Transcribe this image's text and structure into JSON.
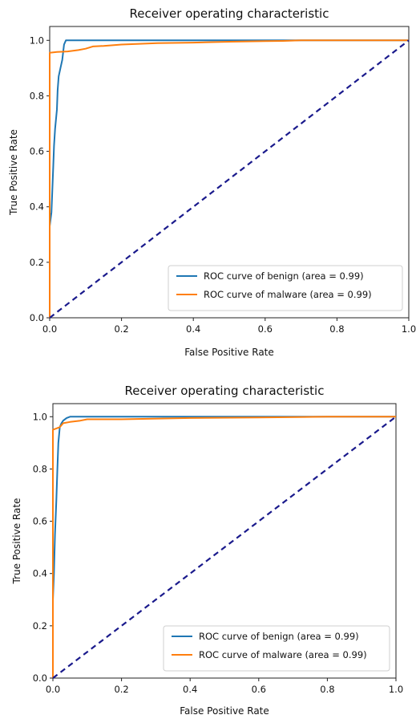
{
  "chart_data": [
    {
      "type": "line",
      "title": "Receiver operating characteristic",
      "xlabel": "False Positive Rate",
      "ylabel": "True Positive Rate",
      "xlim": [
        0,
        1
      ],
      "ylim": [
        0,
        1.05
      ],
      "xticks": [
        "0.0",
        "0.2",
        "0.4",
        "0.6",
        "0.8",
        "1.0"
      ],
      "yticks": [
        "0.0",
        "0.2",
        "0.4",
        "0.6",
        "0.8",
        "1.0"
      ],
      "legend_position": "lower-right",
      "grid": false,
      "series": [
        {
          "name": "ROC curve of benign (area = 0.99)",
          "color": "#1f77b4",
          "x": [
            0,
            0,
            0.005,
            0.01,
            0.012,
            0.015,
            0.02,
            0.022,
            0.025,
            0.03,
            0.035,
            0.04,
            0.045,
            0.06,
            0.2,
            0.4,
            0.6,
            0.7,
            1.0
          ],
          "y": [
            0,
            0.33,
            0.38,
            0.55,
            0.62,
            0.68,
            0.75,
            0.82,
            0.87,
            0.9,
            0.93,
            0.985,
            1.0,
            1.0,
            1.0,
            1.0,
            1.0,
            1.0,
            1.0
          ]
        },
        {
          "name": "ROC curve of malware (area = 0.99)",
          "color": "#ff7f0e",
          "x": [
            0,
            0,
            0.02,
            0.05,
            0.08,
            0.1,
            0.12,
            0.15,
            0.2,
            0.3,
            0.4,
            0.5,
            0.6,
            0.65,
            0.7,
            1.0
          ],
          "y": [
            0,
            0.955,
            0.958,
            0.96,
            0.965,
            0.97,
            0.978,
            0.98,
            0.985,
            0.99,
            0.992,
            0.995,
            0.997,
            0.998,
            1.0,
            1.0
          ]
        },
        {
          "color": "#1a1a8c",
          "style": "dashed",
          "x": [
            0,
            1
          ],
          "y": [
            0,
            1
          ]
        }
      ]
    },
    {
      "type": "line",
      "title": "Receiver operating characteristic",
      "xlabel": "False Positive Rate",
      "ylabel": "True Positive Rate",
      "xlim": [
        0,
        1
      ],
      "ylim": [
        0,
        1.05
      ],
      "xticks": [
        "0.0",
        "0.2",
        "0.4",
        "0.6",
        "0.8",
        "1.0"
      ],
      "yticks": [
        "0.0",
        "0.2",
        "0.4",
        "0.6",
        "0.8",
        "1.0"
      ],
      "legend_position": "lower-right",
      "grid": false,
      "series": [
        {
          "name": "ROC curve of benign (area = 0.99)",
          "color": "#1f77b4",
          "x": [
            0,
            0,
            0.003,
            0.006,
            0.01,
            0.013,
            0.016,
            0.02,
            0.025,
            0.03,
            0.04,
            0.05,
            0.07,
            0.1,
            0.3,
            0.6,
            1.0
          ],
          "y": [
            0,
            0.3,
            0.4,
            0.55,
            0.68,
            0.8,
            0.9,
            0.96,
            0.975,
            0.985,
            0.995,
            1.0,
            1.0,
            1.0,
            1.0,
            1.0,
            1.0
          ]
        },
        {
          "name": "ROC curve of malware (area = 0.99)",
          "color": "#ff7f0e",
          "x": [
            0,
            0,
            0.01,
            0.02,
            0.03,
            0.05,
            0.08,
            0.1,
            0.2,
            0.4,
            0.6,
            0.8,
            1.0
          ],
          "y": [
            0,
            0.95,
            0.955,
            0.96,
            0.975,
            0.98,
            0.985,
            0.99,
            0.99,
            0.995,
            0.997,
            1.0,
            1.0
          ]
        },
        {
          "color": "#1a1a8c",
          "style": "dashed",
          "x": [
            0,
            1
          ],
          "y": [
            0,
            1
          ]
        }
      ]
    }
  ]
}
